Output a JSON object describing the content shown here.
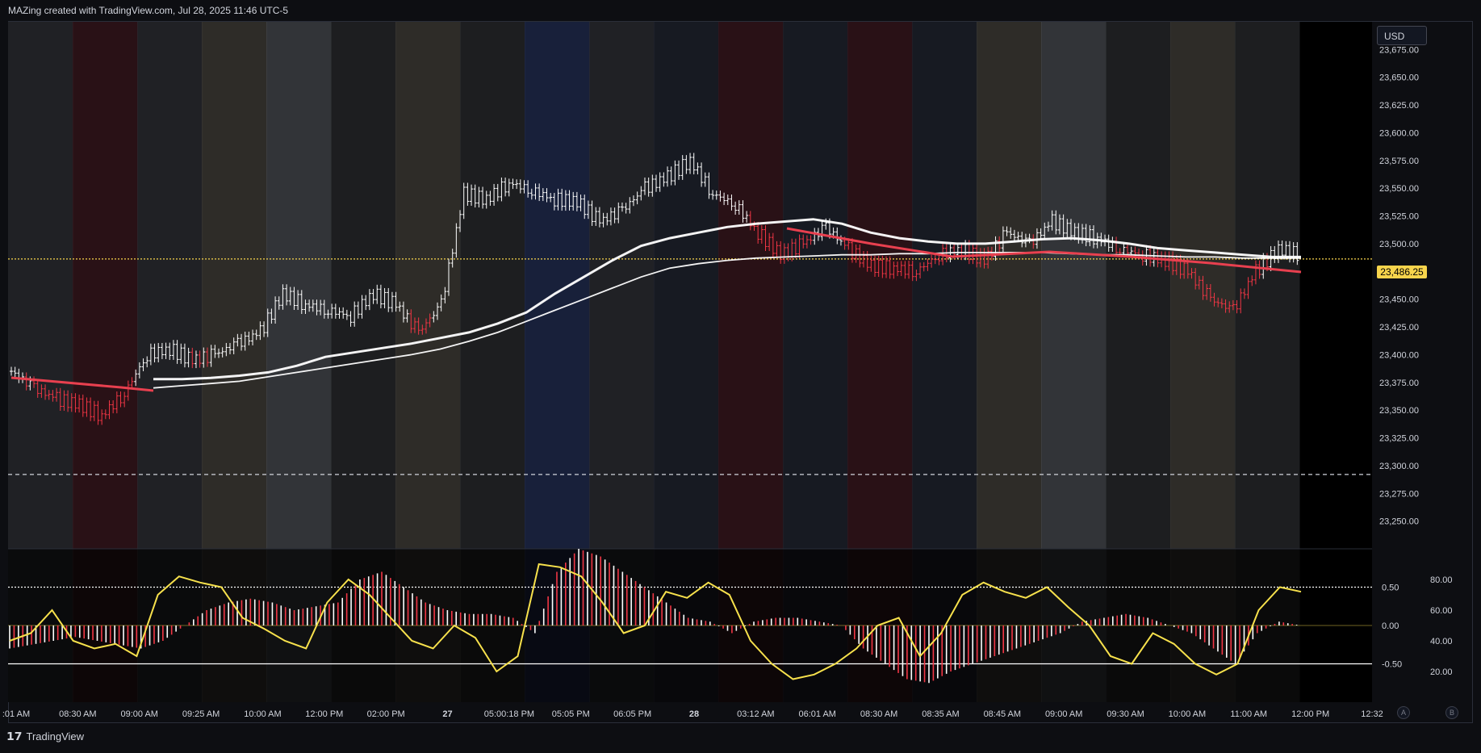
{
  "header": {
    "text": "MAZing created with TradingView.com, Jul 28, 2025 11:46 UTC-5"
  },
  "footer": {
    "brand": "TradingView"
  },
  "scale_buttons": {
    "a": "A",
    "b": "B"
  },
  "price_axis": {
    "currency": "USD",
    "last_price_label": "23,486.25"
  },
  "colors": {
    "background": "#000000",
    "up": "#ffffff",
    "down": "#f23645",
    "oscillator": "#f7e14c",
    "last_price": "#f7d44c",
    "ma_red": "#e8404f"
  },
  "chart_data": [
    {
      "type": "candlestick",
      "title": "",
      "symbol_price_unit": "USD",
      "ylim": [
        23225,
        23700
      ],
      "y_ticks": [
        "23,250.00",
        "23,275.00",
        "23,300.00",
        "23,325.00",
        "23,350.00",
        "23,375.00",
        "23,400.00",
        "23,425.00",
        "23,450.00",
        "23,475.00",
        "23,500.00",
        "23,525.00",
        "23,550.00",
        "23,575.00",
        "23,600.00",
        "23,625.00",
        "23,650.00",
        "23,675.00"
      ],
      "y_tick_values": [
        23250,
        23275,
        23300,
        23325,
        23350,
        23375,
        23400,
        23425,
        23450,
        23475,
        23500,
        23525,
        23550,
        23575,
        23600,
        23625,
        23650,
        23675
      ],
      "x_ticks": [
        ":01 AM",
        "08:30 AM",
        "09:00 AM",
        "09:25 AM",
        "10:00 AM",
        "12:00 PM",
        "02:00 PM",
        "27",
        "05:00:18 PM",
        "05:05 PM",
        "06:05 PM",
        "28",
        "03:12 AM",
        "06:01 AM",
        "08:30 AM",
        "08:35 AM",
        "08:45 AM",
        "09:00 AM",
        "09:30 AM",
        "10:00 AM",
        "11:00 AM",
        "12:00 PM",
        "12:32"
      ],
      "close_series": [
        23385,
        23370,
        23360,
        23355,
        23345,
        23365,
        23400,
        23405,
        23395,
        23400,
        23410,
        23420,
        23455,
        23445,
        23440,
        23435,
        23455,
        23445,
        23420,
        23445,
        23545,
        23540,
        23555,
        23548,
        23540,
        23538,
        23520,
        23530,
        23550,
        23560,
        23575,
        23545,
        23535,
        23510,
        23490,
        23500,
        23515,
        23495,
        23480,
        23478,
        23475,
        23490,
        23495,
        23485,
        23510,
        23500,
        23520,
        23510,
        23505,
        23495,
        23490,
        23485,
        23475,
        23450,
        23440,
        23475,
        23495,
        23490
      ],
      "moving_averages": [
        {
          "color": "white-thick",
          "values": [
            23378,
            23378,
            23379,
            23381,
            23384,
            23390,
            23398,
            23402,
            23406,
            23410,
            23415,
            23420,
            23428,
            23438,
            23455,
            23470,
            23485,
            23498,
            23505,
            23510,
            23515,
            23518,
            23520,
            23522,
            23518,
            23510,
            23505,
            23502,
            23500,
            23500,
            23502,
            23504,
            23505,
            23503,
            23500,
            23496,
            23494,
            23492,
            23490,
            23488,
            23488
          ]
        },
        {
          "color": "white-thin",
          "values": [
            23370,
            23372,
            23374,
            23376,
            23380,
            23384,
            23388,
            23392,
            23396,
            23400,
            23405,
            23412,
            23420,
            23430,
            23440,
            23450,
            23460,
            23470,
            23478,
            23482,
            23485,
            23487,
            23488,
            23489,
            23490,
            23490,
            23491,
            23491,
            23492,
            23492,
            23492,
            23492,
            23491,
            23490,
            23490,
            23489,
            23488,
            23488,
            23487,
            23487,
            23487
          ]
        }
      ],
      "horizontal_lines": [
        {
          "label": "last price",
          "value": 23486.25,
          "style": "dotted",
          "color": "#f7d44c"
        },
        {
          "value": 23292,
          "style": "dashed",
          "color": "#d1d4dc"
        }
      ],
      "session_bands": [
        "#3a3d44",
        "#4a1f28",
        "#3a3d44",
        "#545048",
        "#5b5e66",
        "#35363a",
        "#545048",
        "#35363a",
        "#2b3a6a",
        "#3a3d44",
        "#2a2f3e",
        "#4a1f28",
        "#2a2f3e",
        "#4a1f28",
        "#2a2f3e",
        "#545048",
        "#5b5e66",
        "#35363a",
        "#545048",
        "#35363a"
      ]
    },
    {
      "type": "bar",
      "title": "",
      "ylim": [
        -1.0,
        1.0
      ],
      "y_ticks": [
        "0.50",
        "0.00",
        "-0.50"
      ],
      "y_tick_values": [
        0.5,
        0.0,
        -0.5
      ],
      "right_ticks": [
        "80.00",
        "60.00",
        "40.00",
        "20.00"
      ],
      "right_tick_values": [
        80,
        60,
        40,
        20
      ],
      "reference_lines": [
        {
          "value": 0.5,
          "style": "dotted"
        },
        {
          "value": -0.5,
          "style": "solid"
        }
      ],
      "histogram": [
        -0.3,
        -0.25,
        -0.2,
        -0.15,
        -0.2,
        -0.25,
        -0.3,
        -0.2,
        0.0,
        0.2,
        0.3,
        0.35,
        0.3,
        0.2,
        0.25,
        0.3,
        0.6,
        0.7,
        0.5,
        0.3,
        0.2,
        0.15,
        0.15,
        0.1,
        -0.1,
        0.7,
        1.0,
        0.9,
        0.7,
        0.5,
        0.3,
        0.1,
        0.05,
        -0.1,
        0.05,
        0.1,
        0.1,
        0.05,
        0.0,
        -0.3,
        -0.5,
        -0.7,
        -0.75,
        -0.6,
        -0.5,
        -0.4,
        -0.3,
        -0.2,
        -0.1,
        0.05,
        0.1,
        0.15,
        0.1,
        0.0,
        -0.1,
        -0.3,
        -0.5,
        -0.1,
        0.05,
        0.0
      ],
      "oscillator": [
        40,
        45,
        60,
        40,
        35,
        38,
        30,
        70,
        82,
        78,
        75,
        55,
        48,
        40,
        35,
        65,
        80,
        70,
        55,
        40,
        35,
        50,
        42,
        20,
        30,
        90,
        88,
        82,
        65,
        45,
        50,
        72,
        68,
        78,
        70,
        40,
        25,
        15,
        18,
        25,
        35,
        50,
        55,
        30,
        45,
        70,
        78,
        72,
        68,
        75,
        62,
        50,
        30,
        25,
        45,
        38,
        25,
        18,
        25,
        60,
        75,
        72
      ]
    }
  ]
}
